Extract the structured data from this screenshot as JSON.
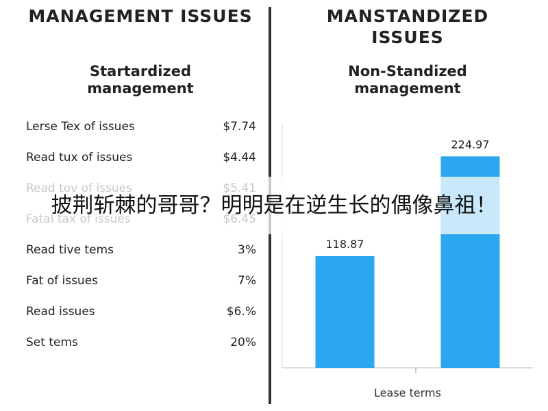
{
  "left": {
    "title": "MANAGEMENT ISSUES",
    "subtitle": "Startardized management",
    "rows": [
      [
        "Lerse Tex of issues",
        "$7.74"
      ],
      [
        "Read tux of issues",
        "$4.44"
      ],
      [
        "Read tov of issues",
        "$5.41"
      ],
      [
        "Fatal tax of issues",
        "$6.45"
      ],
      [
        "Read tive tems",
        "3%"
      ],
      [
        "Fat of issues",
        "7%"
      ],
      [
        "Read issues",
        "$6.%"
      ],
      [
        "Set tems",
        "20%"
      ]
    ]
  },
  "chart_data": {
    "type": "bar",
    "title": "MANSTANDIZED ISSUES",
    "subtitle": "Non-Standized management",
    "categories": [
      null,
      null
    ],
    "values": [
      118.87,
      224.97
    ],
    "color": "#2aa7ee",
    "xlabel": "Lease terms",
    "ylim": [
      0,
      250
    ]
  },
  "overlay": {
    "caption": "披荆斩棘的哥哥？明明是在逆生长的偶像鼻祖！"
  }
}
